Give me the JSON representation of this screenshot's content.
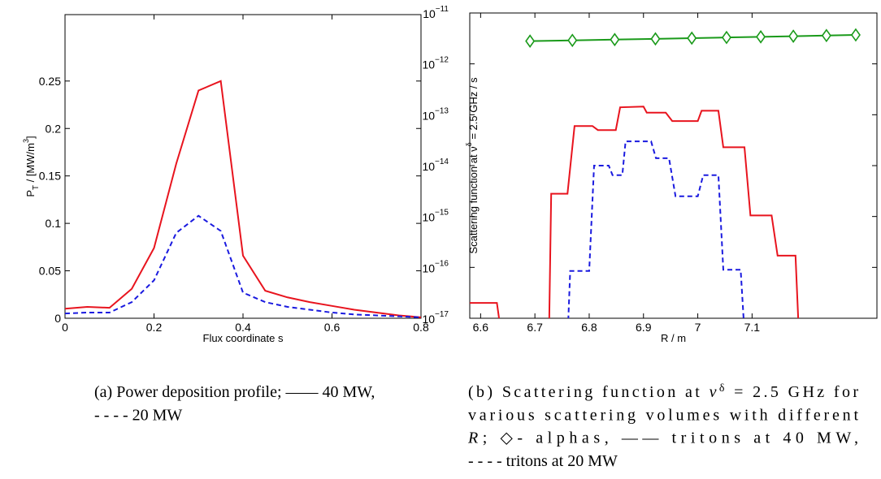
{
  "chart_data": [
    {
      "type": "line",
      "xlabel": "Flux coordinate s",
      "ylabel": [
        "P",
        {
          "sub": "T"
        },
        "  / [MW/m",
        {
          "sup": "3"
        },
        "]"
      ],
      "x": [
        0,
        0.05,
        0.1,
        0.15,
        0.2,
        0.25,
        0.3,
        0.35,
        0.4,
        0.45,
        0.5,
        0.55,
        0.6,
        0.65,
        0.7,
        0.75,
        0.8
      ],
      "series": [
        {
          "color": "#e8141e",
          "dash": false,
          "values": [
            0.01,
            0.012,
            0.011,
            0.031,
            0.074,
            0.163,
            0.24,
            0.25,
            0.066,
            0.029,
            0.022,
            0.017,
            0.013,
            0.009,
            0.006,
            0.003,
            0.001
          ]
        },
        {
          "color": "#1a1adf",
          "dash": true,
          "values": [
            0.005,
            0.006,
            0.006,
            0.017,
            0.04,
            0.09,
            0.108,
            0.092,
            0.027,
            0.017,
            0.012,
            0.009,
            0.006,
            0.004,
            0.003,
            0.002,
            0.001
          ]
        }
      ],
      "xlim": [
        0,
        0.8
      ],
      "xticks": [
        0,
        0.2,
        0.4,
        0.6,
        0.8
      ],
      "ylim": [
        0,
        0.32
      ],
      "yticks": [
        0,
        0.05,
        0.1,
        0.15,
        0.2,
        0.25
      ],
      "caption": [
        [
          "(a) Power deposition profile; —— 40 MW,"
        ],
        [
          "- - - - 20 MW"
        ]
      ]
    },
    {
      "type": "line",
      "log_y": true,
      "xlabel": "R / m",
      "ylabel": [
        "Scattering function at ν",
        {
          "sup": "δ"
        },
        " = 2.5 GHz / s"
      ],
      "series": [
        {
          "color": "#1a9a1a",
          "dash": false,
          "marker": "diamond",
          "x": [
            6.691,
            6.769,
            6.847,
            6.922,
            6.989,
            7.053,
            7.116,
            7.176,
            7.237,
            7.291
          ],
          "values": [
            2.8e-12,
            2.9e-12,
            3e-12,
            3.1e-12,
            3.2e-12,
            3.3e-12,
            3.4e-12,
            3.5e-12,
            3.6e-12,
            3.7e-12
          ]
        },
        {
          "color": "#e8141e",
          "dash": false,
          "x": [
            6.58,
            6.63,
            6.647,
            6.725,
            6.73,
            6.76,
            6.773,
            6.806,
            6.816,
            6.849,
            6.857,
            6.9,
            6.906,
            6.941,
            6.953,
            7.0,
            7.007,
            7.038,
            7.047,
            7.086,
            7.097,
            7.136,
            7.147,
            7.18,
            7.189
          ],
          "values": [
            2e-17,
            2e-17,
            1e-18,
            1e-18,
            2.8e-15,
            2.8e-15,
            6e-14,
            6e-14,
            5e-14,
            5e-14,
            1.4e-13,
            1.45e-13,
            1.1e-13,
            1.1e-13,
            7.5e-14,
            7.5e-14,
            1.2e-13,
            1.2e-13,
            2.3e-14,
            2.3e-14,
            1.05e-15,
            1.05e-15,
            1.7e-16,
            1.7e-16,
            1e-18
          ]
        },
        {
          "color": "#1a1adf",
          "dash": true,
          "x": [
            6.758,
            6.765,
            6.8,
            6.809,
            6.836,
            6.843,
            6.861,
            6.867,
            6.914,
            6.923,
            6.947,
            6.959,
            7.0,
            7.01,
            7.038,
            7.047,
            7.079,
            7.09
          ],
          "values": [
            1e-18,
            8.5e-17,
            8.5e-17,
            1e-14,
            1e-14,
            6.5e-15,
            6.5e-15,
            3e-14,
            3e-14,
            1.4e-14,
            1.4e-14,
            2.5e-15,
            2.5e-15,
            6.5e-15,
            6.5e-15,
            9e-17,
            9e-17,
            1e-18
          ]
        }
      ],
      "xlim": [
        6.58,
        7.33
      ],
      "xticks": [
        6.6,
        6.7,
        6.8,
        6.9,
        7,
        7.1
      ],
      "ylim": [
        1e-17,
        1e-11
      ],
      "yticks": [
        {
          "value": 1e-17,
          "label": "10",
          "exponent": "−17"
        },
        {
          "value": 1e-16,
          "label": "10",
          "exponent": "−16"
        },
        {
          "value": 1e-15,
          "label": "10",
          "exponent": "−15"
        },
        {
          "value": 1e-14,
          "label": "10",
          "exponent": "−14"
        },
        {
          "value": 1e-13,
          "label": "10",
          "exponent": "−13"
        },
        {
          "value": 1e-12,
          "label": "10",
          "exponent": "−12"
        },
        {
          "value": 1e-11,
          "label": "10",
          "exponent": "−11"
        }
      ],
      "caption": [
        [
          "(b) Scattering function at ",
          {
            "i": "ν"
          },
          {
            "sup": "δ"
          },
          " = 2.5 GHz for"
        ],
        [
          "various scattering volumes with different"
        ],
        [
          {
            "i": "R"
          },
          ";  ◇- alphas, —— tritons at 40 MW,"
        ],
        [
          "- - - - tritons at 20 MW"
        ]
      ]
    }
  ]
}
